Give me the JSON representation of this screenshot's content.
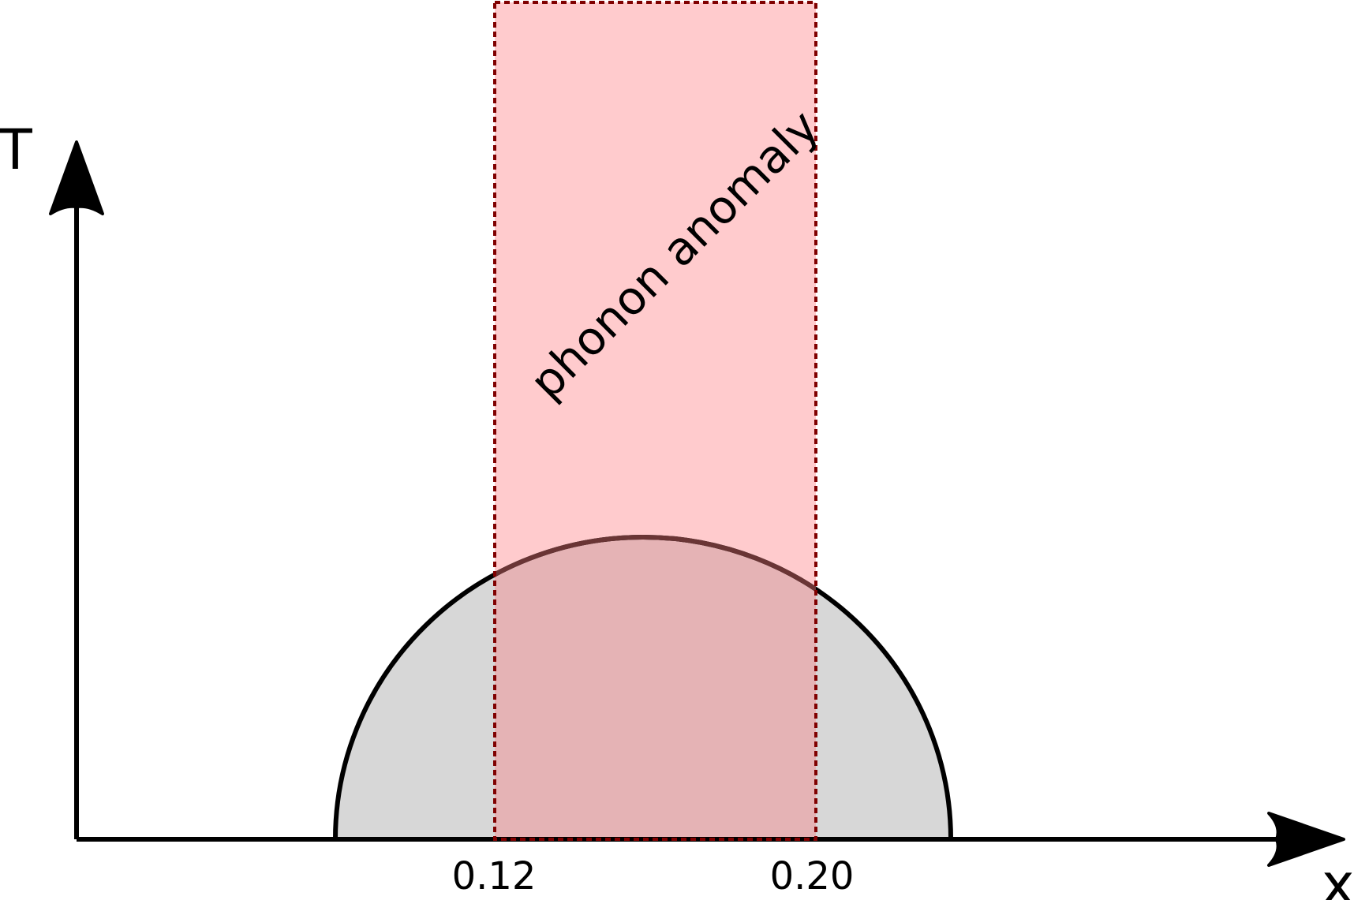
{
  "diagram": {
    "axes": {
      "y_label": "T",
      "x_label": "x"
    },
    "ticks": [
      {
        "label": "0.12"
      },
      {
        "label": "0.20"
      }
    ],
    "region": {
      "label": "phonon anomaly",
      "fill_color": "#ffcbcd",
      "border_color": "#800000"
    },
    "dome": {
      "fill_color": "#d7d7d7",
      "stroke_color": "#000000"
    },
    "overlap_color": "#e5b3b5"
  }
}
